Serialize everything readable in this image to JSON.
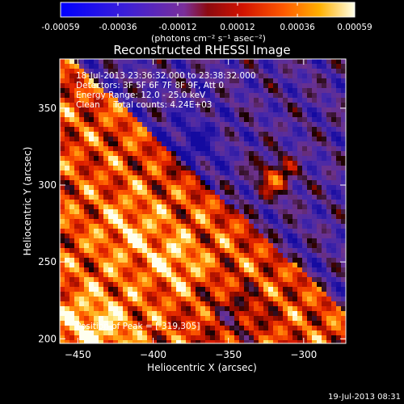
{
  "colorbar": {
    "tick_labels": [
      "-0.00059",
      "-0.00036",
      "-0.00012",
      "0.00012",
      "0.00036",
      "0.00059"
    ],
    "tick_values": [
      -0.00059,
      -0.00036,
      -0.00012,
      0.00012,
      0.00036,
      0.00059
    ],
    "range": [
      -0.00059,
      0.00059
    ],
    "units_label": "(photons cm⁻² s⁻¹ asec⁻²)"
  },
  "chart_data": {
    "type": "heatmap",
    "title": "Reconstructed RHESSI Image",
    "xlabel": "Heliocentric X (arcsec)",
    "ylabel": "Heliocentric Y (arcsec)",
    "xlim": [
      -462,
      -272
    ],
    "ylim": [
      197,
      382
    ],
    "x_ticks": [
      -450,
      -400,
      -350,
      -300
    ],
    "y_ticks": [
      200,
      250,
      300,
      350
    ],
    "x_tick_labels": [
      "−450",
      "−400",
      "−350",
      "−300"
    ],
    "y_tick_labels": [
      "200",
      "250",
      "300",
      "350"
    ],
    "peak": {
      "x": -319,
      "y": 305
    },
    "colormap": "red-temperature (blue/purple negative to white positive)",
    "annotations": {
      "time_range": "18-Jul-2013 23:36:32.000 to 23:38:32.000",
      "detectors": "Detectors: 3F 5F 6F 7F 8F 9F, Att 0",
      "energy": "Energy Range: 12.0 - 25.0 keV",
      "clean": "Clean     Total counts: 4.24E+03",
      "peak_text": "Position of Peak = [-319,305]"
    },
    "grid": false
  },
  "footer_timestamp": "19-Jul-2013 08:31"
}
